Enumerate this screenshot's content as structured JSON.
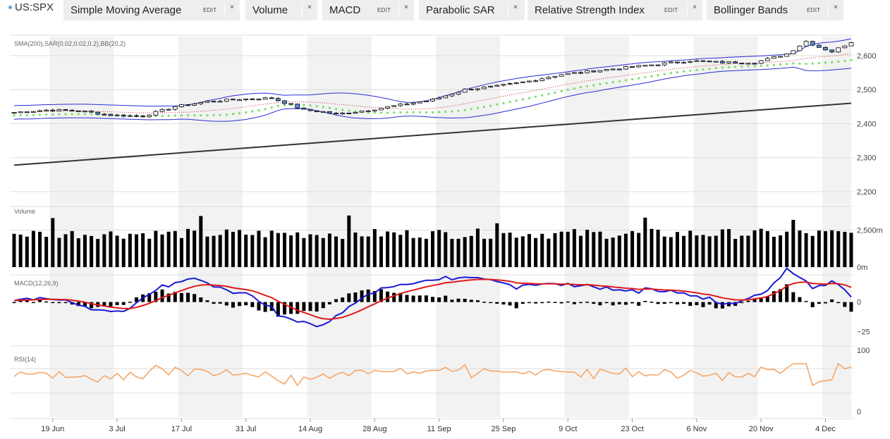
{
  "symbol": "US:SPX",
  "tabs": [
    {
      "label": "Simple Moving Average",
      "edit": "EDIT",
      "close": "×"
    },
    {
      "label": "Volume",
      "close": "×"
    },
    {
      "label": "MACD",
      "edit": "EDIT",
      "close": "×"
    },
    {
      "label": "Parabolic SAR",
      "close": "×"
    },
    {
      "label": "Relative Strength Index",
      "edit": "EDIT",
      "close": "×"
    },
    {
      "label": "Bollinger Bands",
      "edit": "EDIT",
      "close": "×"
    }
  ],
  "colors": {
    "candle_up": "#ffffff",
    "candle_down": "#5b8fd6",
    "sma": "#333333",
    "bollinger": "#2b2bd6",
    "sar": "#77dd66",
    "bb_mid": "#cc3333",
    "volume": "#000000",
    "macd": "#1a1ad6",
    "macd_signal": "#e01a1a",
    "rsi": "#f4a261",
    "shade": "#f2f2f2",
    "grid": "#dddddd"
  },
  "chart_data": [
    {
      "type": "candlestick",
      "label": "SMA(200),SAR(0.02,0.02,0.2),BB(20,2)",
      "ylim": [
        2200,
        2660
      ],
      "yticks": [
        "2,600",
        "2,500",
        "2,400",
        "2,300",
        "2,200"
      ],
      "ytick_values": [
        2600,
        2500,
        2400,
        2300,
        2200
      ],
      "x_tick_labels": [
        "19 Jun",
        "3 Jul",
        "17 Jul",
        "31 Jul",
        "14 Aug",
        "28 Aug",
        "11 Sep",
        "25 Sep",
        "9 Oct",
        "23 Oct",
        "6 Nov",
        "20 Nov",
        "4 Dec"
      ],
      "x_tick_index": [
        6,
        16,
        26,
        36,
        46,
        56,
        66,
        76,
        86,
        96,
        106,
        116,
        126
      ],
      "close_anchors": {
        "index": [
          0,
          5,
          10,
          15,
          20,
          25,
          30,
          35,
          40,
          43,
          45,
          48,
          50,
          55,
          60,
          65,
          70,
          75,
          80,
          85,
          90,
          95,
          100,
          105,
          110,
          115,
          120,
          123,
          125,
          127,
          130
        ],
        "value": [
          2433,
          2440,
          2438,
          2425,
          2422,
          2450,
          2465,
          2472,
          2475,
          2455,
          2440,
          2435,
          2428,
          2440,
          2455,
          2470,
          2500,
          2510,
          2525,
          2545,
          2555,
          2565,
          2575,
          2585,
          2580,
          2580,
          2605,
          2642,
          2625,
          2612,
          2640
        ]
      },
      "sma200_range": [
        2278,
        2460
      ],
      "n_periods": 131
    },
    {
      "type": "bar",
      "label": "Volume",
      "yticks": [
        "2,500m",
        "0m"
      ],
      "ytick_values": [
        2500,
        0
      ]
    },
    {
      "type": "line",
      "label": "MACD(12,26,9)",
      "yticks": [
        "0",
        "−25"
      ],
      "ytick_values": [
        0,
        -25
      ]
    },
    {
      "type": "line",
      "label": "RSI(14)",
      "yticks": [
        "100",
        "0"
      ],
      "ytick_values": [
        100,
        0
      ]
    }
  ]
}
